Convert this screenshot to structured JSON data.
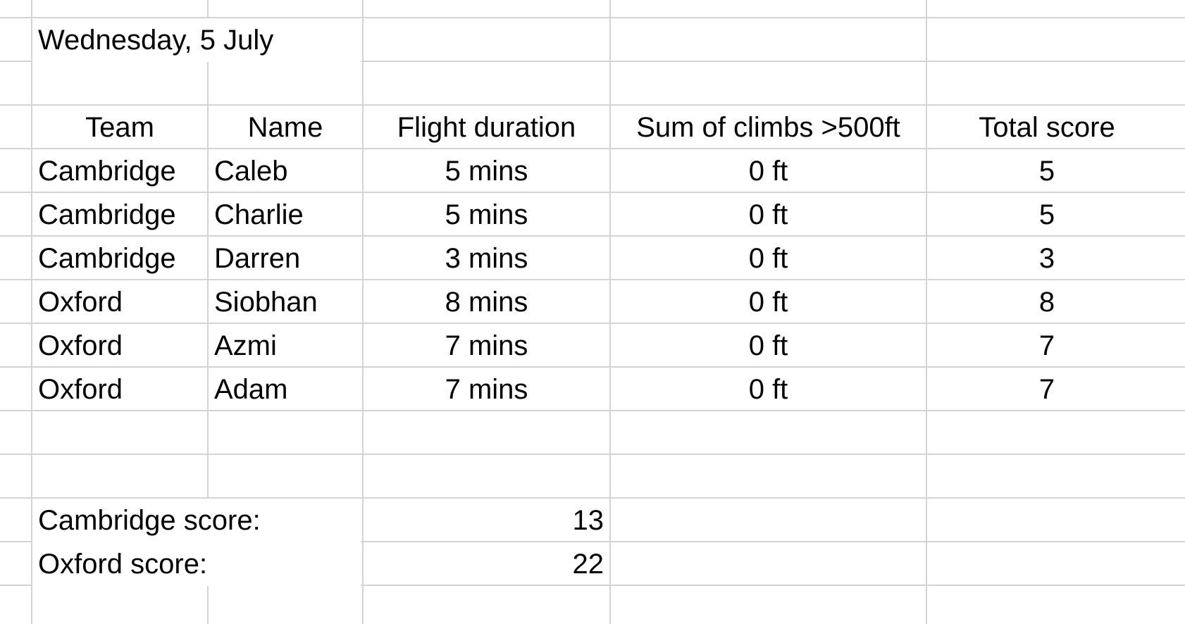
{
  "sheet": {
    "date": "Wednesday, 5 July",
    "headers": {
      "team": "Team",
      "name": "Name",
      "flight_duration": "Flight duration",
      "climbs": "Sum of climbs >500ft",
      "total_score": "Total score"
    },
    "rows": [
      {
        "team": "Cambridge",
        "name": "Caleb",
        "duration": "5 mins",
        "climbs": "0 ft",
        "score": "5"
      },
      {
        "team": "Cambridge",
        "name": "Charlie",
        "duration": "5 mins",
        "climbs": "0 ft",
        "score": "5"
      },
      {
        "team": "Cambridge",
        "name": "Darren",
        "duration": "3 mins",
        "climbs": "0 ft",
        "score": "3"
      },
      {
        "team": "Oxford",
        "name": "Siobhan",
        "duration": "8 mins",
        "climbs": "0 ft",
        "score": "8"
      },
      {
        "team": "Oxford",
        "name": "Azmi",
        "duration": "7 mins",
        "climbs": "0 ft",
        "score": "7"
      },
      {
        "team": "Oxford",
        "name": "Adam",
        "duration": "7 mins",
        "climbs": "0 ft",
        "score": "7"
      }
    ],
    "summary": {
      "cambridge_label": "Cambridge score:",
      "cambridge_value": "13",
      "oxford_label": "Oxford score:",
      "oxford_value": "22"
    }
  },
  "colors": {
    "gridline": "#d4d4d4",
    "text": "#000000",
    "background": "#ffffff"
  }
}
